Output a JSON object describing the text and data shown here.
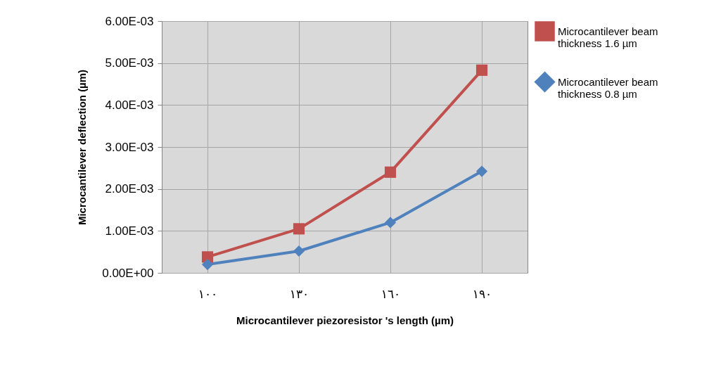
{
  "chart_data": {
    "type": "line",
    "xlabel": "Microcantilever piezoresistor 's length (µm)",
    "ylabel": "Microcantilever deflection (µm)",
    "categories": [
      "١٠٠",
      "١٣٠",
      "١٦٠",
      "١٩٠"
    ],
    "series": [
      {
        "name": "Microcantilever beam thickness 1.6 µm",
        "color": "#c0504d",
        "marker": "square",
        "values": [
          0.00038,
          0.00105,
          0.0024,
          0.00483
        ]
      },
      {
        "name": "Microcantilever beam thickness 0.8 µm",
        "color": "#4f81bd",
        "marker": "diamond",
        "values": [
          0.0002,
          0.00052,
          0.0012,
          0.00242
        ]
      }
    ],
    "ylim": [
      0,
      0.006
    ],
    "yticks": [
      {
        "value": 0,
        "label": "0.00E+00"
      },
      {
        "value": 0.001,
        "label": "1.00E-03"
      },
      {
        "value": 0.002,
        "label": "2.00E-03"
      },
      {
        "value": 0.003,
        "label": "3.00E-03"
      },
      {
        "value": 0.004,
        "label": "4.00E-03"
      },
      {
        "value": 0.005,
        "label": "5.00E-03"
      },
      {
        "value": 0.006,
        "label": "6.00E-03"
      }
    ],
    "grid": true,
    "legend": "right",
    "line_style": "solid"
  }
}
